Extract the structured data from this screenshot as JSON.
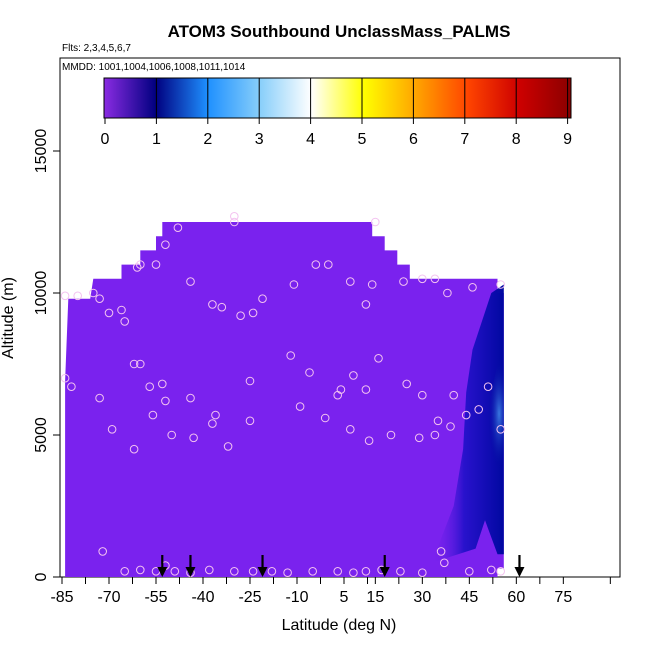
{
  "chart_data": {
    "type": "heatmap",
    "title": "ATOM3 Southbound UnclassMass_PALMS",
    "subtitle_flights": "Flts: 2,3,4,5,6,7",
    "subtitle_dates": "MMDD: 1001,1004,1006,1008,1011,1014",
    "xlabel": "Latitude (deg N)",
    "ylabel": "Altitude (m)",
    "xlim": [
      -85,
      90
    ],
    "ylim": [
      0,
      17500
    ],
    "xticks": [
      "-85",
      "-70",
      "-55",
      "-40",
      "-25",
      "-10",
      "5",
      "15",
      "30",
      "45",
      "60",
      "75"
    ],
    "xtick_values": [
      -85,
      -70,
      -55,
      -40,
      -25,
      -10,
      5,
      15,
      30,
      45,
      60,
      75
    ],
    "yticks": [
      "0",
      "5000",
      "10000",
      "15000"
    ],
    "ytick_values": [
      0,
      5000,
      10000,
      15000
    ],
    "colorbar": {
      "min": 0,
      "max": 9,
      "tick_labels": [
        "0",
        "1",
        "2",
        "3",
        "4",
        "5",
        "6",
        "7",
        "8",
        "9"
      ],
      "stops": [
        "#8a2be2",
        "#000080",
        "#1e90ff",
        "#87cefa",
        "#ffffff",
        "#ffff00",
        "#ffa500",
        "#ff4500",
        "#cd0000",
        "#8b0000"
      ]
    },
    "background_value_color": "#7a22ee",
    "arrows_latitude": [
      -53,
      -44,
      -21,
      18,
      61
    ],
    "observations": [
      [
        -84,
        9900
      ],
      [
        -80,
        9900
      ],
      [
        -75,
        10000
      ],
      [
        -73,
        9800
      ],
      [
        -70,
        9300
      ],
      [
        -66,
        9400
      ],
      [
        -65,
        9000
      ],
      [
        -61,
        10900
      ],
      [
        -60,
        11000
      ],
      [
        -55,
        11000
      ],
      [
        -52,
        11700
      ],
      [
        -48,
        12300
      ],
      [
        -44,
        10400
      ],
      [
        -37,
        9600
      ],
      [
        -34,
        9500
      ],
      [
        -28,
        9200
      ],
      [
        -24,
        9300
      ],
      [
        -21,
        9800
      ],
      [
        -11,
        10300
      ],
      [
        -4,
        11000
      ],
      [
        0,
        11000
      ],
      [
        7,
        10400
      ],
      [
        12,
        9600
      ],
      [
        14,
        10300
      ],
      [
        24,
        10400
      ],
      [
        30,
        10500
      ],
      [
        34,
        10500
      ],
      [
        38,
        10000
      ],
      [
        46,
        10200
      ],
      [
        55,
        10300
      ],
      [
        -84,
        7000
      ],
      [
        -82,
        6700
      ],
      [
        -73,
        6300
      ],
      [
        -62,
        7500
      ],
      [
        -60,
        7500
      ],
      [
        -57,
        6700
      ],
      [
        -53,
        6800
      ],
      [
        -52,
        6200
      ],
      [
        -44,
        6300
      ],
      [
        -36,
        5700
      ],
      [
        -25,
        6900
      ],
      [
        -12,
        7800
      ],
      [
        -9,
        6000
      ],
      [
        -6,
        7200
      ],
      [
        -1,
        5600
      ],
      [
        3,
        6400
      ],
      [
        4,
        6600
      ],
      [
        8,
        7100
      ],
      [
        12,
        6600
      ],
      [
        16,
        7700
      ],
      [
        25,
        6800
      ],
      [
        30,
        6400
      ],
      [
        35,
        5500
      ],
      [
        40,
        6400
      ],
      [
        44,
        5700
      ],
      [
        48,
        5900
      ],
      [
        51,
        6700
      ],
      [
        55,
        5200
      ],
      [
        -69,
        5200
      ],
      [
        -62,
        4500
      ],
      [
        -56,
        5700
      ],
      [
        -50,
        5000
      ],
      [
        -43,
        4900
      ],
      [
        -37,
        5400
      ],
      [
        -32,
        4600
      ],
      [
        -25,
        5500
      ],
      [
        7,
        5200
      ],
      [
        13,
        4800
      ],
      [
        20,
        5000
      ],
      [
        29,
        4900
      ],
      [
        34,
        5000
      ],
      [
        39,
        5300
      ],
      [
        -72,
        900
      ],
      [
        -65,
        200
      ],
      [
        -60,
        250
      ],
      [
        -55,
        200
      ],
      [
        -52,
        400
      ],
      [
        -49,
        200
      ],
      [
        -44,
        150
      ],
      [
        -38,
        250
      ],
      [
        -30,
        200
      ],
      [
        -24,
        200
      ],
      [
        -18,
        200
      ],
      [
        -13,
        150
      ],
      [
        -5,
        200
      ],
      [
        3,
        200
      ],
      [
        8,
        150
      ],
      [
        12,
        200
      ],
      [
        17,
        250
      ],
      [
        23,
        200
      ],
      [
        30,
        150
      ],
      [
        36,
        900
      ],
      [
        37,
        500
      ],
      [
        45,
        200
      ],
      [
        52,
        250
      ],
      [
        55,
        200
      ],
      [
        -30,
        12500
      ],
      [
        15,
        12500
      ],
      [
        -30,
        12700
      ]
    ]
  }
}
